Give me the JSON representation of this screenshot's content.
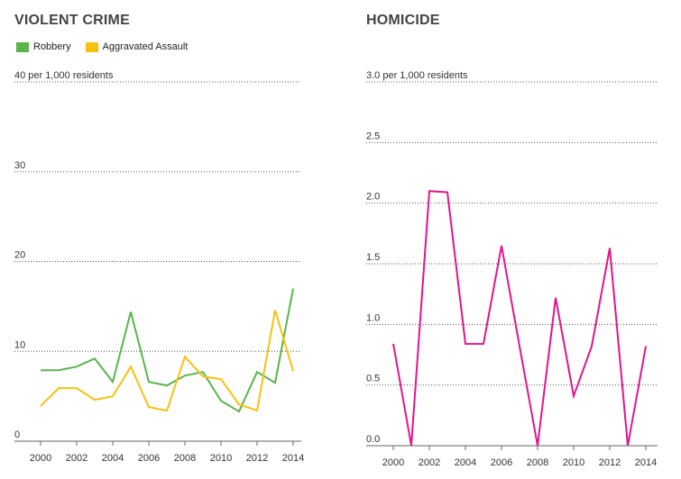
{
  "chart_data": [
    {
      "type": "line",
      "title": "VIOLENT CRIME",
      "x": [
        2000,
        2001,
        2002,
        2003,
        2004,
        2005,
        2006,
        2007,
        2008,
        2009,
        2010,
        2011,
        2012,
        2013,
        2014
      ],
      "xticks": [
        "2000",
        "2002",
        "2004",
        "2006",
        "2008",
        "2010",
        "2012",
        "2014"
      ],
      "ylim": [
        0,
        40
      ],
      "yticks": [
        0,
        10,
        20,
        30,
        40
      ],
      "ytick_labels": [
        "0",
        "10",
        "20",
        "30",
        "40 per 1,000 residents"
      ],
      "grid": true,
      "legend": "top-left",
      "series": [
        {
          "name": "Robbery",
          "color": "#5ab44c",
          "values": [
            7.9,
            7.9,
            8.3,
            9.2,
            6.6,
            14.4,
            6.6,
            6.2,
            7.3,
            7.7,
            4.5,
            3.3,
            7.7,
            6.5,
            17.0
          ]
        },
        {
          "name": "Aggravated Assault",
          "color": "#f5c211",
          "values": [
            3.9,
            5.9,
            5.9,
            4.6,
            5.0,
            8.3,
            3.8,
            3.4,
            9.4,
            7.2,
            6.9,
            4.1,
            3.4,
            14.6,
            7.8
          ]
        }
      ]
    },
    {
      "type": "line",
      "title": "HOMICIDE",
      "x": [
        2000,
        2001,
        2002,
        2003,
        2004,
        2005,
        2006,
        2007,
        2008,
        2009,
        2010,
        2011,
        2012,
        2013,
        2014
      ],
      "xticks": [
        "2000",
        "2002",
        "2004",
        "2006",
        "2008",
        "2010",
        "2012",
        "2014"
      ],
      "ylim": [
        0,
        3
      ],
      "yticks": [
        0,
        0.5,
        1,
        1.5,
        2,
        2.5,
        3
      ],
      "ytick_labels": [
        "0.0",
        "0.5",
        "1.0",
        "1.5",
        "2.0",
        "2.5",
        "3.0 per 1,000 residents"
      ],
      "grid": true,
      "series": [
        {
          "color": "#e3148c",
          "values": [
            0.84,
            0.0,
            2.1,
            2.09,
            0.84,
            0.84,
            1.65,
            0.82,
            0.0,
            1.22,
            0.41,
            0.82,
            1.63,
            0.0,
            0.82
          ]
        }
      ]
    }
  ]
}
